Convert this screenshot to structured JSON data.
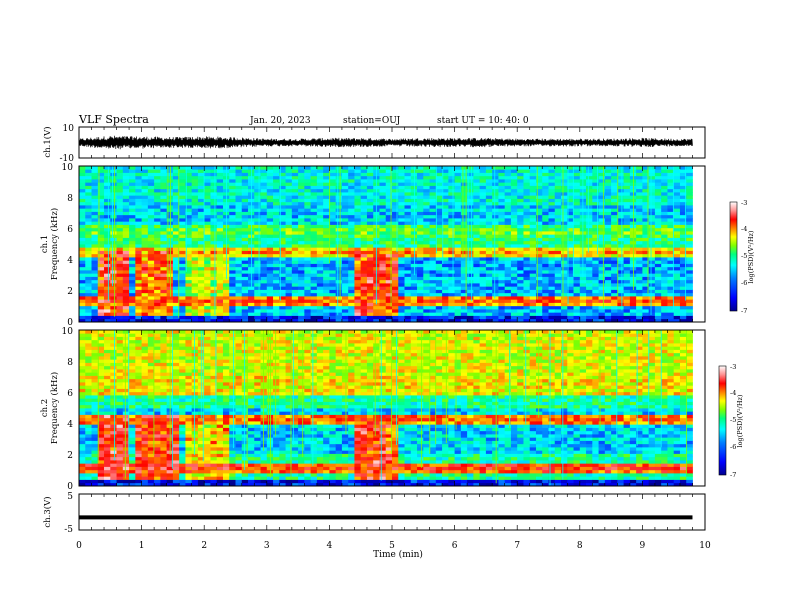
{
  "header": {
    "title": "VLF Spectra",
    "date": "Jan. 20, 2023",
    "station": "station=OUJ",
    "start": "start  UT =   10: 40: 0"
  },
  "colors": {
    "colormap": [
      "#00008f",
      "#0000ff",
      "#0080ff",
      "#00ffff",
      "#00ff80",
      "#80ff00",
      "#ffff00",
      "#ff8000",
      "#ff0000",
      "#ff9090",
      "#ffffff"
    ],
    "trace": "#000000",
    "axes": "#000000"
  },
  "chart_data": [
    {
      "type": "line",
      "id": "ch1-waveform",
      "ylabel": "ch.1(V)",
      "ylim": [
        -10,
        10
      ],
      "yticks": [
        "10",
        "-10"
      ],
      "xlim": [
        0,
        10
      ],
      "description_of_trace": "noise waveform",
      "amplitude_envelope": {
        "x": [
          0,
          0.5,
          1.0,
          1.5,
          2.0,
          2.5,
          3.0,
          3.5,
          4.0,
          4.5,
          5.0,
          5.5,
          6.0,
          6.5,
          7.0,
          7.5,
          8.0,
          8.5,
          9.0,
          9.5,
          9.8
        ],
        "y": [
          2.5,
          4.5,
          4.0,
          3.5,
          4.0,
          3.5,
          2.5,
          2.5,
          3.0,
          3.0,
          2.5,
          3.0,
          3.0,
          3.0,
          2.5,
          2.5,
          2.5,
          2.5,
          3.0,
          2.5,
          2.5
        ]
      }
    },
    {
      "type": "heatmap",
      "id": "ch1-spectrogram",
      "ylabel": "ch.1\nFrequency (kHz)",
      "ylabel_line1": "ch.1",
      "ylabel_line2": "Frequency (kHz)",
      "ylim": [
        0,
        10
      ],
      "yticks": [
        "0",
        "2",
        "4",
        "6",
        "8",
        "10"
      ],
      "xlim": [
        0,
        10
      ],
      "data_extent_x": [
        0,
        9.8
      ],
      "colorbar": {
        "label": "log(PSD)(V²/Hz)",
        "range": [
          -7,
          -3
        ],
        "ticks": [
          "-3",
          "-4",
          "-5",
          "-6",
          "-7"
        ]
      },
      "bursts": [
        {
          "t": [
            0.3,
            0.75
          ],
          "f": [
            0.2,
            4.5
          ],
          "level": -3.5
        },
        {
          "t": [
            0.9,
            1.5
          ],
          "f": [
            0.2,
            4.5
          ],
          "level": -3.8
        },
        {
          "t": [
            1.75,
            2.4
          ],
          "f": [
            0.5,
            4.5
          ],
          "level": -4.5
        },
        {
          "t": [
            4.4,
            5.1
          ],
          "f": [
            0.5,
            4.5
          ],
          "level": -3.6
        }
      ],
      "bands": [
        {
          "f": 4.5,
          "level": -4.3
        },
        {
          "f": 1.4,
          "level": -4.0
        },
        {
          "f": 5.8,
          "level": -5.0
        }
      ]
    },
    {
      "type": "heatmap",
      "id": "ch2-spectrogram",
      "ylabel": "ch.2\nFrequency (kHz)",
      "ylabel_line1": "ch.2",
      "ylabel_line2": "Frequency (kHz)",
      "ylim": [
        0,
        10
      ],
      "yticks": [
        "0",
        "2",
        "4",
        "6",
        "8",
        "10"
      ],
      "xlim": [
        0,
        10
      ],
      "data_extent_x": [
        0,
        9.8
      ],
      "colorbar": {
        "label": "log(PSD)(V²/Hz)",
        "range": [
          -7,
          -3
        ],
        "ticks": [
          "-3",
          "-4",
          "-5",
          "-6",
          "-7"
        ]
      },
      "bursts": [
        {
          "t": [
            0.3,
            0.75
          ],
          "f": [
            0.2,
            4.5
          ],
          "level": -3.4
        },
        {
          "t": [
            0.9,
            1.6
          ],
          "f": [
            0.2,
            4.5
          ],
          "level": -3.6
        },
        {
          "t": [
            1.75,
            2.4
          ],
          "f": [
            0.5,
            4.5
          ],
          "level": -4.2
        },
        {
          "t": [
            4.4,
            5.1
          ],
          "f": [
            0.5,
            4.5
          ],
          "level": -3.6
        }
      ],
      "bands": [
        {
          "f": 6.5,
          "level": -4.8
        },
        {
          "f": 4.3,
          "level": -4.0
        },
        {
          "f": 1.2,
          "level": -3.8
        }
      ]
    },
    {
      "type": "line",
      "id": "ch3-waveform",
      "ylabel": "ch.3(V)",
      "ylim": [
        -5,
        5
      ],
      "yticks": [
        "5",
        "-5"
      ],
      "xlim": [
        0,
        10
      ],
      "xlabel": "Time  (min)",
      "xticks": [
        "0",
        "1",
        "2",
        "3",
        "4",
        "5",
        "6",
        "7",
        "8",
        "9",
        "10"
      ],
      "constant_value": -1.5,
      "data_extent_x": [
        0,
        9.8
      ]
    }
  ]
}
